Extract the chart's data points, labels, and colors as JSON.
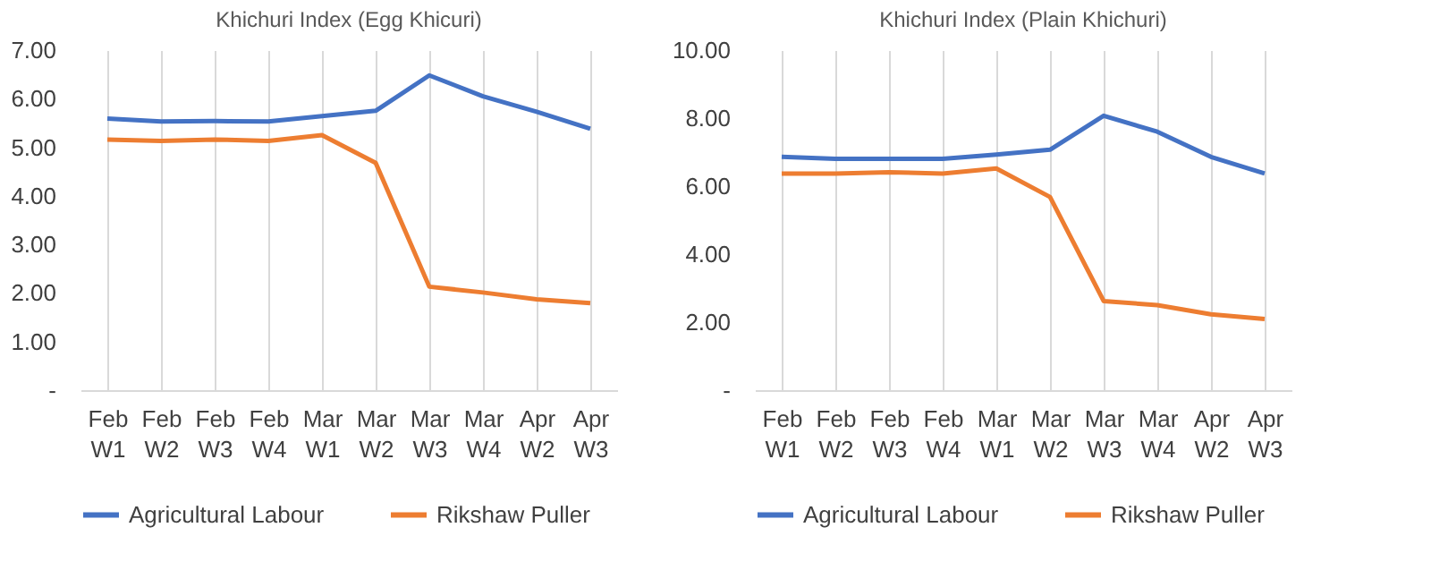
{
  "chart_data": [
    {
      "type": "line",
      "title": "Khichuri Index (Egg Khicuri)",
      "categories": [
        "Feb W1",
        "Feb W2",
        "Feb W3",
        "Feb W4",
        "Mar W1",
        "Mar W2",
        "Mar W3",
        "Mar W4",
        "Apr W2",
        "Apr W3"
      ],
      "series": [
        {
          "name": "Agricultural Labour",
          "color": "#4472c4",
          "values": [
            5.59,
            5.53,
            5.54,
            5.53,
            5.64,
            5.75,
            6.48,
            6.05,
            5.73,
            5.38
          ]
        },
        {
          "name": "Rikshaw Puller",
          "color": "#ed7d31",
          "values": [
            5.16,
            5.13,
            5.16,
            5.13,
            5.25,
            4.68,
            2.13,
            2.01,
            1.87,
            1.79
          ]
        }
      ],
      "ylim": [
        0,
        7
      ],
      "yticks": [
        {
          "value": 0,
          "label": "-"
        },
        {
          "value": 1,
          "label": "1.00"
        },
        {
          "value": 2,
          "label": "2.00"
        },
        {
          "value": 3,
          "label": "3.00"
        },
        {
          "value": 4,
          "label": "4.00"
        },
        {
          "value": 5,
          "label": "5.00"
        },
        {
          "value": 6,
          "label": "6.00"
        },
        {
          "value": 7,
          "label": "7.00"
        }
      ],
      "grid": "x",
      "legend": "bottom",
      "marker": "none",
      "line_style": "solid"
    },
    {
      "type": "line",
      "title": "Khichuri Index (Plain Khichuri)",
      "categories": [
        "Feb W1",
        "Feb W2",
        "Feb W3",
        "Feb W4",
        "Mar W1",
        "Mar W2",
        "Mar W3",
        "Mar W4",
        "Apr W2",
        "Apr W3"
      ],
      "series": [
        {
          "name": "Agricultural Labour",
          "color": "#4472c4",
          "values": [
            6.86,
            6.8,
            6.8,
            6.8,
            6.93,
            7.07,
            8.07,
            7.6,
            6.86,
            6.37
          ]
        },
        {
          "name": "Rikshaw Puller",
          "color": "#ed7d31",
          "values": [
            6.37,
            6.37,
            6.41,
            6.37,
            6.52,
            5.68,
            2.62,
            2.5,
            2.23,
            2.09
          ]
        }
      ],
      "ylim": [
        0,
        10
      ],
      "yticks": [
        {
          "value": 0,
          "label": "-"
        },
        {
          "value": 2,
          "label": "2.00"
        },
        {
          "value": 4,
          "label": "4.00"
        },
        {
          "value": 6,
          "label": "6.00"
        },
        {
          "value": 8,
          "label": "8.00"
        },
        {
          "value": 10,
          "label": "10.00"
        }
      ],
      "grid": "x",
      "legend": "bottom",
      "marker": "none",
      "line_style": "solid"
    }
  ]
}
